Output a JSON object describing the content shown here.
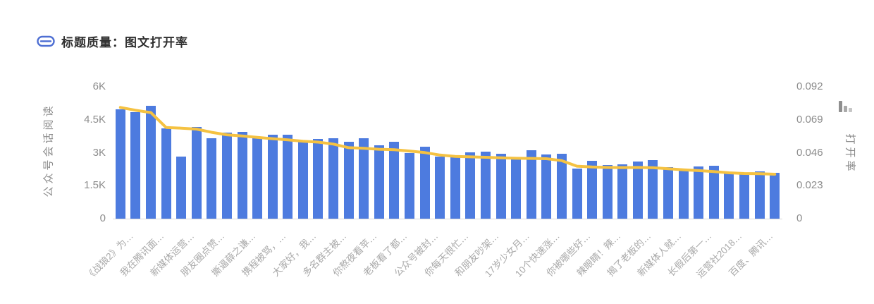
{
  "header": {
    "title": "标题质量：图文打开率"
  },
  "colors": {
    "bar": "#4d7bdf",
    "line": "#f5c242",
    "link_icon": "#4e6fd3",
    "axis_text": "#8c8c8c",
    "x_label_text": "#a9a9a9",
    "baseline": "#d9d9d9",
    "mini_icon_bars": [
      "#8f8f8f",
      "#a9a9a9",
      "#c6c6c6"
    ]
  },
  "chart_data": {
    "type": "bar",
    "subtype": "bar-line-combo",
    "title": "标题质量：图文打开率",
    "grid": false,
    "left_axis": {
      "title": "公众号会话阅读",
      "tick_labels": [
        "0",
        "1.5K",
        "3K",
        "4.5K",
        "6K"
      ],
      "tick_values": [
        0,
        1500,
        3000,
        4500,
        6000
      ],
      "max": 6000
    },
    "right_axis": {
      "title": "打开率",
      "tick_labels": [
        "0",
        "0.023",
        "0.046",
        "0.069",
        "0.092"
      ],
      "tick_values": [
        0,
        0.023,
        0.046,
        0.069,
        0.092
      ],
      "max": 0.092
    },
    "x_axis": {
      "label_rotate_deg": 45,
      "label_every_n_bars": 2,
      "labels": [
        "《战狼2》为…",
        "我在腾讯面…",
        "新媒体运营…",
        "朋友圈点赞…",
        "撕逼薛之谦…",
        "携程被骂，…",
        "大家好，我…",
        "多名群主被…",
        "你熬夜看苹…",
        "老板看了都…",
        "公众号被封…",
        "你每天很忙…",
        "和朋友吵架…",
        "17岁少女月…",
        "10个快速涨…",
        "你被哪些好…",
        "辣眼睛！辣…",
        "揭了老板的…",
        "新媒体人就…",
        "长假后第一…",
        "运营社2018…",
        "百度、腾讯…"
      ]
    },
    "series": [
      {
        "name": "公众号会话阅读",
        "type": "bar",
        "axis": "left",
        "values": [
          4970,
          4840,
          5130,
          4110,
          2830,
          4160,
          3670,
          3910,
          3950,
          3730,
          3820,
          3820,
          3510,
          3620,
          3650,
          3510,
          3670,
          3350,
          3510,
          2970,
          3270,
          2810,
          2860,
          3010,
          3050,
          2950,
          2720,
          3100,
          2920,
          2940,
          2270,
          2620,
          2440,
          2460,
          2600,
          2650,
          2350,
          2220,
          2380,
          2400,
          2060,
          2020,
          2150,
          2080
        ]
      },
      {
        "name": "打开率",
        "type": "line",
        "axis": "right",
        "values": [
          0.0776,
          0.0756,
          0.074,
          0.0636,
          0.0631,
          0.0625,
          0.0602,
          0.0585,
          0.0577,
          0.0567,
          0.0558,
          0.055,
          0.054,
          0.0534,
          0.052,
          0.0495,
          0.0491,
          0.0484,
          0.0481,
          0.0472,
          0.0461,
          0.0444,
          0.0434,
          0.0431,
          0.0428,
          0.0424,
          0.0421,
          0.042,
          0.0418,
          0.0405,
          0.0366,
          0.036,
          0.0357,
          0.0356,
          0.0357,
          0.0355,
          0.0348,
          0.0341,
          0.0335,
          0.0328,
          0.032,
          0.0315,
          0.0314,
          0.031
        ]
      }
    ]
  }
}
